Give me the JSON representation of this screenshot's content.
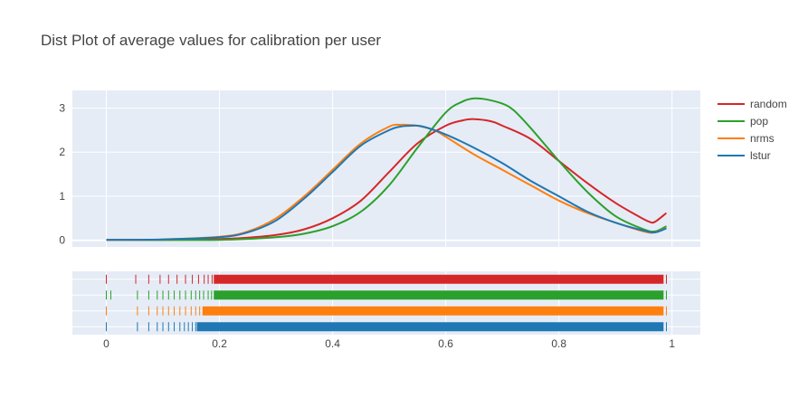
{
  "chart_data": {
    "type": "line",
    "title": "Dist Plot of average values for calibration per user",
    "xlabel": "",
    "ylabel": "",
    "xlim": [
      -0.06,
      1.05
    ],
    "ylim": [
      -0.15,
      3.4
    ],
    "x_ticks": [
      "0",
      "0.2",
      "0.4",
      "0.6",
      "0.8",
      "1"
    ],
    "x_tick_values": [
      0,
      0.2,
      0.4,
      0.6,
      0.8,
      1
    ],
    "y_ticks": [
      "0",
      "1",
      "2",
      "3"
    ],
    "y_tick_values": [
      0,
      1,
      2,
      3
    ],
    "grid": true,
    "legend_position": "right",
    "background_color": "#e5ecf6",
    "series": [
      {
        "name": "random",
        "color": "#d62728",
        "x": [
          0,
          0.1,
          0.2,
          0.25,
          0.3,
          0.35,
          0.4,
          0.45,
          0.5,
          0.55,
          0.6,
          0.63,
          0.65,
          0.68,
          0.7,
          0.75,
          0.8,
          0.85,
          0.9,
          0.94,
          0.96,
          0.97,
          0.99
        ],
        "y": [
          0.01,
          0.01,
          0.03,
          0.06,
          0.12,
          0.25,
          0.5,
          0.9,
          1.55,
          2.2,
          2.6,
          2.72,
          2.75,
          2.7,
          2.6,
          2.3,
          1.8,
          1.3,
          0.85,
          0.55,
          0.42,
          0.42,
          0.62
        ]
      },
      {
        "name": "pop",
        "color": "#2ca02c",
        "x": [
          0,
          0.2,
          0.3,
          0.35,
          0.4,
          0.45,
          0.5,
          0.55,
          0.6,
          0.63,
          0.65,
          0.67,
          0.7,
          0.72,
          0.75,
          0.8,
          0.85,
          0.9,
          0.95,
          0.97,
          0.99
        ],
        "y": [
          0.01,
          0.01,
          0.07,
          0.15,
          0.32,
          0.65,
          1.25,
          2.1,
          2.9,
          3.15,
          3.22,
          3.2,
          3.1,
          2.95,
          2.55,
          1.8,
          1.1,
          0.55,
          0.25,
          0.2,
          0.32
        ]
      },
      {
        "name": "nrms",
        "color": "#ff7f0e",
        "x": [
          0,
          0.1,
          0.2,
          0.25,
          0.3,
          0.35,
          0.4,
          0.45,
          0.5,
          0.52,
          0.53,
          0.55,
          0.58,
          0.6,
          0.65,
          0.7,
          0.75,
          0.8,
          0.85,
          0.9,
          0.95,
          0.97,
          0.99
        ],
        "y": [
          0.01,
          0.02,
          0.08,
          0.2,
          0.5,
          1.0,
          1.6,
          2.2,
          2.58,
          2.62,
          2.62,
          2.6,
          2.5,
          2.35,
          1.95,
          1.6,
          1.25,
          0.9,
          0.62,
          0.4,
          0.2,
          0.18,
          0.28
        ]
      },
      {
        "name": "lstur",
        "color": "#1f77b4",
        "x": [
          0,
          0.1,
          0.2,
          0.25,
          0.3,
          0.35,
          0.4,
          0.45,
          0.5,
          0.52,
          0.54,
          0.56,
          0.6,
          0.65,
          0.7,
          0.75,
          0.8,
          0.85,
          0.9,
          0.95,
          0.97,
          0.99
        ],
        "y": [
          0.01,
          0.02,
          0.07,
          0.18,
          0.45,
          0.95,
          1.55,
          2.15,
          2.5,
          2.58,
          2.6,
          2.58,
          2.4,
          2.1,
          1.75,
          1.35,
          1.0,
          0.65,
          0.4,
          0.22,
          0.18,
          0.27
        ]
      }
    ],
    "rug": {
      "xlim": [
        -0.06,
        1.05
      ],
      "rows": [
        {
          "name": "random",
          "color": "#d62728",
          "scatter": [
            0,
            0.052,
            0.075,
            0.095,
            0.11,
            0.125,
            0.14,
            0.152,
            0.163,
            0.173,
            0.18,
            0.187
          ],
          "band": [
            0.19,
            0.985
          ],
          "tail": [
            0.99
          ]
        },
        {
          "name": "pop",
          "color": "#2ca02c",
          "scatter": [
            0,
            0.008,
            0.055,
            0.075,
            0.09,
            0.1,
            0.11,
            0.12,
            0.13,
            0.14,
            0.15,
            0.158,
            0.165,
            0.172,
            0.18,
            0.186
          ],
          "band": [
            0.19,
            0.985
          ],
          "tail": [
            0.99
          ]
        },
        {
          "name": "nrms",
          "color": "#ff7f0e",
          "scatter": [
            0,
            0.055,
            0.075,
            0.09,
            0.1,
            0.11,
            0.12,
            0.13,
            0.14,
            0.15,
            0.158,
            0.165
          ],
          "band": [
            0.17,
            0.985
          ],
          "tail": [
            0.99
          ]
        },
        {
          "name": "lstur",
          "color": "#1f77b4",
          "scatter": [
            0,
            0.055,
            0.075,
            0.09,
            0.1,
            0.11,
            0.12,
            0.13,
            0.138,
            0.145,
            0.152,
            0.158
          ],
          "band": [
            0.16,
            0.985
          ],
          "tail": [
            0.99
          ]
        }
      ]
    }
  }
}
